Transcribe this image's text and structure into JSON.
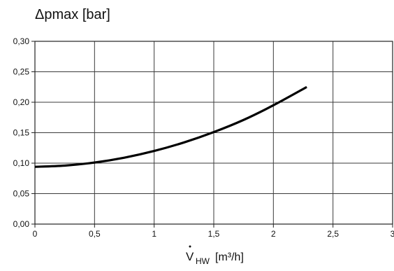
{
  "chart_data": {
    "type": "line",
    "title": "Δpmax [bar]",
    "xlabel": {
      "symbol": "V",
      "subscript": "HW",
      "unit": "[m³/h]"
    },
    "ylabel": "",
    "xlim": [
      0,
      3
    ],
    "ylim": [
      0,
      0.3
    ],
    "x_ticks": [
      {
        "value": 0,
        "label": "0"
      },
      {
        "value": 0.5,
        "label": "0,5"
      },
      {
        "value": 1,
        "label": "1"
      },
      {
        "value": 1.5,
        "label": "1,5"
      },
      {
        "value": 2,
        "label": "2"
      },
      {
        "value": 2.5,
        "label": "2,5"
      },
      {
        "value": 3,
        "label": "3"
      }
    ],
    "y_ticks": [
      {
        "value": 0,
        "label": "0,00"
      },
      {
        "value": 0.05,
        "label": "0,05"
      },
      {
        "value": 0.1,
        "label": "0,10"
      },
      {
        "value": 0.15,
        "label": "0,15"
      },
      {
        "value": 0.2,
        "label": "0,20"
      },
      {
        "value": 0.25,
        "label": "0,25"
      },
      {
        "value": 0.3,
        "label": "0,30"
      }
    ],
    "grid": true,
    "legend": "none",
    "series": [
      {
        "color": "#000000",
        "x": [
          0,
          0.25,
          0.5,
          0.75,
          1.0,
          1.25,
          1.5,
          1.75,
          2.0,
          2.28
        ],
        "y": [
          0.094,
          0.096,
          0.101,
          0.109,
          0.12,
          0.134,
          0.151,
          0.171,
          0.195,
          0.225
        ]
      }
    ]
  }
}
